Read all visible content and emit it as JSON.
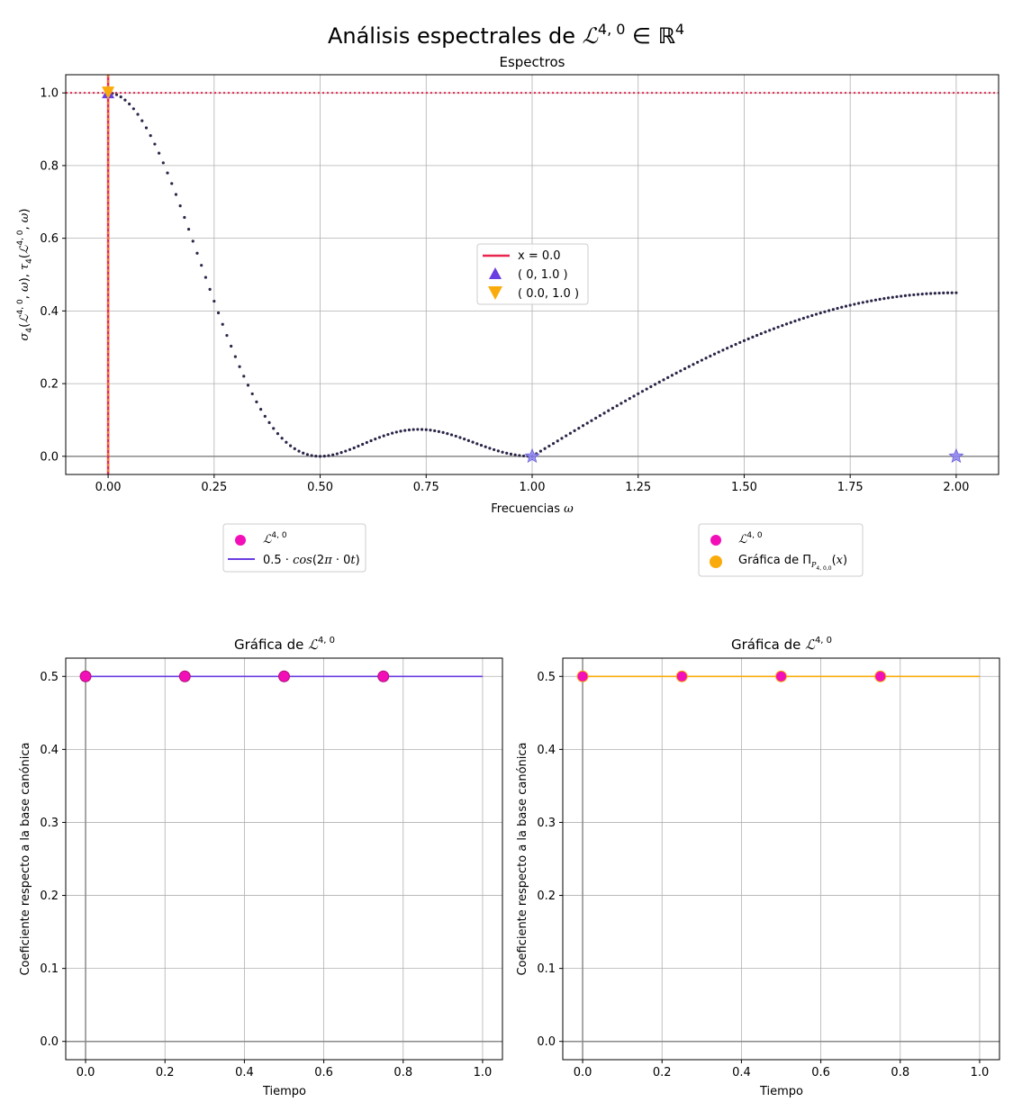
{
  "suptitle": {
    "text": "Análisis espectrales de ",
    "symbol": "ℒ",
    "sup": "4, 0",
    "member": " ∈ ",
    "space": "ℝ",
    "space_sup": "4"
  },
  "chart_data": [
    {
      "type": "scatter",
      "title": "Espectros",
      "xlabel": "Frecuencias ω",
      "ylabel": "σ₄(ℒ⁴·⁰, ω), τ₄(ℒ⁴·⁰, ω)",
      "xlim": [
        -0.1,
        2.1
      ],
      "ylim": [
        -0.05,
        1.05
      ],
      "xticks": [
        0.0,
        0.25,
        0.5,
        0.75,
        1.0,
        1.25,
        1.5,
        1.75,
        2.0
      ],
      "xtick_labels": [
        "0.00",
        "0.25",
        "0.50",
        "0.75",
        "1.00",
        "1.25",
        "1.50",
        "1.75",
        "2.00"
      ],
      "yticks": [
        0.0,
        0.2,
        0.4,
        0.6,
        0.8,
        1.0
      ],
      "ytick_labels": [
        "0.0",
        "0.2",
        "0.4",
        "0.6",
        "0.8",
        "1.0"
      ],
      "grid": true,
      "series": [
        {
          "kind": "dotted-curve",
          "color": "#2b2547",
          "x_range": [
            0.0,
            1.0
          ],
          "shape": "fejer",
          "peak": 1.0
        },
        {
          "kind": "dotted-curve",
          "color": "#2b2547",
          "x_range": [
            1.0,
            2.0
          ],
          "shape": "rising",
          "end": 0.45
        },
        {
          "kind": "hline",
          "y": 1.0,
          "color": "#e8264e",
          "style": "dotted"
        },
        {
          "kind": "vline",
          "x": 0.0,
          "color": "#e8264e",
          "name": "x = 0.0"
        },
        {
          "kind": "marker",
          "x": 0,
          "y": 1.0,
          "symbol": "triangle-up",
          "color": "#6a3de0",
          "name": "( 0, 1.0 )"
        },
        {
          "kind": "marker",
          "x": 0.0,
          "y": 1.0,
          "symbol": "triangle-down",
          "color": "#f9ab0c",
          "name": "( 0.0, 1.0 )"
        },
        {
          "kind": "marker",
          "x": 1.0,
          "y": 0.0,
          "symbol": "star",
          "color": "#8c82f0"
        },
        {
          "kind": "marker",
          "x": 2.0,
          "y": 0.0,
          "symbol": "star",
          "color": "#8c82f0"
        }
      ],
      "legend": {
        "placement": "center-right",
        "entries": [
          {
            "label": "x = 0.0",
            "symbol": "line",
            "color": "#e8264e"
          },
          {
            "label": "( 0, 1.0 )",
            "symbol": "triangle-up",
            "color": "#6a3de0"
          },
          {
            "label": "( 0.0, 1.0 )",
            "symbol": "triangle-down",
            "color": "#f9ab0c"
          }
        ]
      }
    },
    {
      "type": "line",
      "title": "Gráfica de ℒ⁴·⁰",
      "xlabel": "Tiempo",
      "ylabel": "Coeficiente respecto a la base canónica",
      "xlim": [
        -0.05,
        1.05
      ],
      "ylim": [
        -0.025,
        0.525
      ],
      "xticks": [
        0.0,
        0.2,
        0.4,
        0.6,
        0.8,
        1.0
      ],
      "xtick_labels": [
        "0.0",
        "0.2",
        "0.4",
        "0.6",
        "0.8",
        "1.0"
      ],
      "yticks": [
        0.0,
        0.1,
        0.2,
        0.3,
        0.4,
        0.5
      ],
      "ytick_labels": [
        "0.0",
        "0.1",
        "0.2",
        "0.3",
        "0.4",
        "0.5"
      ],
      "grid": true,
      "points": {
        "x": [
          0.0,
          0.25,
          0.5,
          0.75
        ],
        "y": [
          0.5,
          0.5,
          0.5,
          0.5
        ],
        "color": "#f20fb8",
        "edge": "#b0127a"
      },
      "line": {
        "x": [
          0.0,
          1.0
        ],
        "y": [
          0.5,
          0.5
        ],
        "color": "#6a3de0"
      },
      "legend": {
        "placement": "below",
        "entries": [
          {
            "label": "ℒ⁴·⁰",
            "symbol": "dot",
            "color": "#f20fb8"
          },
          {
            "label": "0.5 · cos(2π · 0t)",
            "symbol": "line",
            "color": "#6a3de0"
          }
        ]
      }
    },
    {
      "type": "line",
      "title": "Gráfica de ℒ⁴·⁰",
      "xlabel": "Tiempo",
      "ylabel": "Coeficiente respecto a la base canónica",
      "xlim": [
        -0.05,
        1.05
      ],
      "ylim": [
        -0.025,
        0.525
      ],
      "xticks": [
        0.0,
        0.2,
        0.4,
        0.6,
        0.8,
        1.0
      ],
      "xtick_labels": [
        "0.0",
        "0.2",
        "0.4",
        "0.6",
        "0.8",
        "1.0"
      ],
      "yticks": [
        0.0,
        0.1,
        0.2,
        0.3,
        0.4,
        0.5
      ],
      "ytick_labels": [
        "0.0",
        "0.1",
        "0.2",
        "0.3",
        "0.4",
        "0.5"
      ],
      "grid": true,
      "points": {
        "x": [
          0.0,
          0.25,
          0.5,
          0.75
        ],
        "y": [
          0.5,
          0.5,
          0.5,
          0.5
        ],
        "color": "#f20fb8",
        "edge": "#f9ab0c"
      },
      "line": {
        "x": [
          0.0,
          1.0
        ],
        "y": [
          0.5,
          0.5
        ],
        "color": "#f9ab0c"
      },
      "legend": {
        "placement": "below",
        "entries": [
          {
            "label": "ℒ⁴·⁰",
            "symbol": "dot",
            "color": "#f20fb8"
          },
          {
            "label": "Gráfica de Π_{P4,0,0}(x)",
            "symbol": "dot",
            "color": "#f9ab0c"
          }
        ]
      }
    }
  ]
}
